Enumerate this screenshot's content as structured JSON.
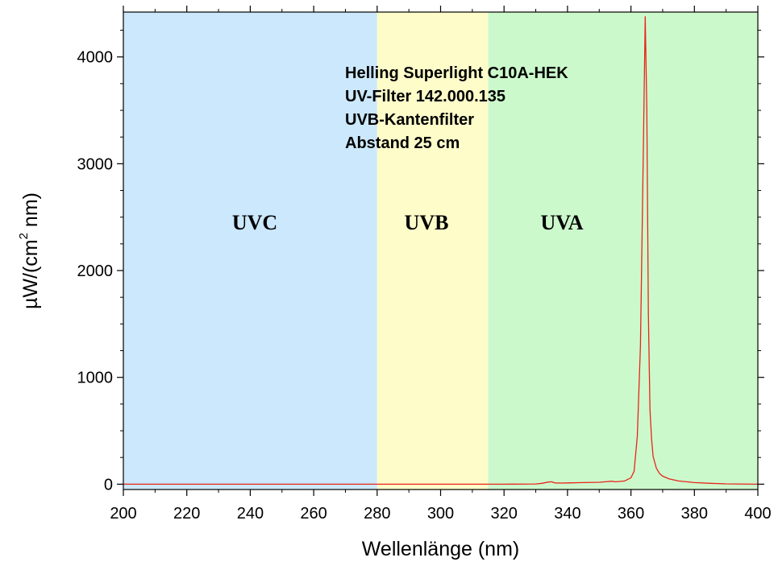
{
  "chart_data": {
    "type": "line",
    "title": "",
    "xlabel": "Wellenlänge (nm)",
    "ylabel_parts": {
      "prefix": "µW/(cm",
      "superscript": "2",
      "suffix": " nm)"
    },
    "xlim": [
      200,
      400
    ],
    "ylim": [
      -50,
      4420
    ],
    "x_ticks": [
      200,
      220,
      240,
      260,
      280,
      300,
      320,
      340,
      360,
      380,
      400
    ],
    "x_tick_labels": [
      "200",
      "220",
      "240",
      "260",
      "280",
      "300",
      "320",
      "340",
      "360",
      "380",
      "400"
    ],
    "y_ticks": [
      0,
      1000,
      2000,
      3000,
      4000
    ],
    "y_tick_labels": [
      "0",
      "1000",
      "2000",
      "3000",
      "4000"
    ],
    "grid": false,
    "regions": [
      {
        "label": "UVC",
        "from": 200,
        "to": 280,
        "color": "#cce8fc"
      },
      {
        "label": "UVB",
        "from": 280,
        "to": 315,
        "color": "#fefcc9"
      },
      {
        "label": "UVA",
        "from": 315,
        "to": 400,
        "color": "#ccf9cc"
      }
    ],
    "annotation": [
      "Helling Superlight C10A-HEK",
      "UV-Filter 142.000.135",
      "UVB-Kantenfilter",
      "Abstand 25 cm"
    ],
    "series": [
      {
        "color": "#e8251c",
        "x": [
          200,
          300,
          320,
          330,
          332,
          334,
          335,
          336,
          338,
          340,
          345,
          350,
          352,
          354,
          355,
          356,
          358,
          360,
          361,
          362,
          363,
          364,
          364.5,
          365,
          365.5,
          366,
          366.5,
          367,
          368,
          369,
          370,
          372,
          375,
          380,
          385,
          390,
          400
        ],
        "y": [
          0,
          0,
          0,
          2,
          8,
          20,
          22,
          12,
          10,
          12,
          15,
          18,
          22,
          28,
          22,
          25,
          30,
          60,
          120,
          450,
          1300,
          3300,
          4380,
          3500,
          1600,
          700,
          420,
          260,
          150,
          100,
          75,
          50,
          30,
          15,
          8,
          3,
          0
        ]
      }
    ]
  }
}
